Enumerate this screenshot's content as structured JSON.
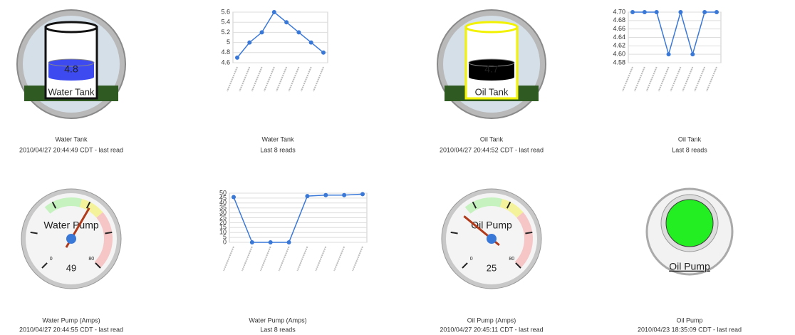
{
  "widgets": [
    {
      "type": "tank",
      "label": "Water Tank",
      "value": 4.8,
      "color": "#3c4af0",
      "outline": "#111111",
      "caption_title": "Water Tank",
      "caption_time": "2010/04/27 20:44:49 CDT - last read"
    },
    {
      "type": "line",
      "values": [
        4.7,
        5.0,
        5.2,
        5.6,
        5.4,
        5.2,
        5.0,
        4.8
      ],
      "color": "#3a78d8",
      "ylim": [
        4.6,
        5.6
      ],
      "yticks": [
        4.6,
        4.8,
        5.0,
        5.2,
        5.4,
        5.6
      ],
      "grid": true,
      "caption_title": "Water Tank",
      "caption_time": "Last 8 reads"
    },
    {
      "type": "tank",
      "label": "Oil Tank",
      "value": 4.7,
      "color": "#000000",
      "outline": "#f2f200",
      "caption_title": "Oil Tank",
      "caption_time": "2010/04/27 20:44:52 CDT - last read"
    },
    {
      "type": "line",
      "values": [
        4.7,
        4.7,
        4.7,
        4.6,
        4.7,
        4.6,
        4.7,
        4.7
      ],
      "color": "#3a78d8",
      "ylim": [
        4.58,
        4.7
      ],
      "yticks": [
        4.58,
        {
          "value": 4.6,
          "label": "4.60"
        },
        4.62,
        4.64,
        4.66,
        4.68,
        {
          "value": 4.7,
          "label": "4.70"
        }
      ],
      "grid": true,
      "caption_title": "Oil Tank",
      "caption_time": "Last 8 reads"
    },
    {
      "type": "gauge",
      "label": "Water Pump",
      "value": 49,
      "scale": [
        0,
        80
      ],
      "caption_title": "Water Pump (Amps)",
      "caption_time": "2010/04/27 20:44:55 CDT - last read"
    },
    {
      "type": "line",
      "values": [
        46,
        0,
        0,
        0,
        47,
        48,
        48,
        49
      ],
      "color": "#3a78d8",
      "ylim": [
        0,
        50
      ],
      "yticks": [
        0,
        5,
        10,
        15,
        20,
        25,
        30,
        35,
        40,
        45,
        50
      ],
      "grid": true,
      "caption_title": "Water Pump (Amps)",
      "caption_time": "Last 8 reads"
    },
    {
      "type": "gauge",
      "label": "Oil Pump",
      "value": 25,
      "scale": [
        0,
        80
      ],
      "caption_title": "Oil Pump (Amps)",
      "caption_time": "2010/04/27 20:45:11 CDT - last read"
    },
    {
      "type": "indicator",
      "label": "Oil Pump",
      "color": "#22ee22",
      "caption_title": "Oil Pump",
      "caption_time": "2010/04/23 18:35:09 CDT - last read"
    }
  ]
}
